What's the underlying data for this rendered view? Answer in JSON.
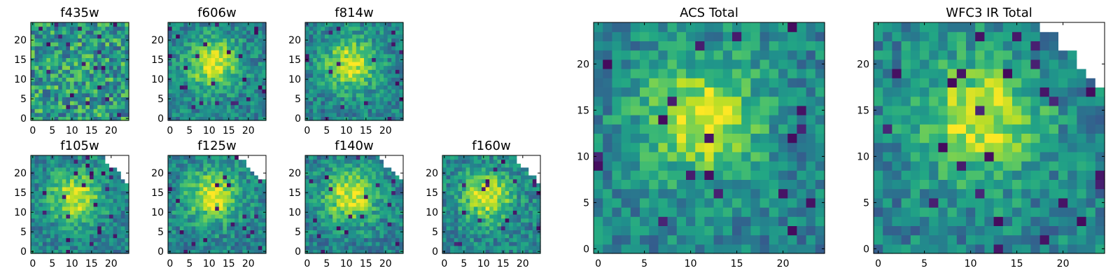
{
  "figure": {
    "background": "#ffffff",
    "colormap": "viridis"
  },
  "chart_data": [
    {
      "type": "heatmap",
      "title": "f435w",
      "xticks": [
        0,
        5,
        10,
        15,
        20
      ],
      "yticks": [
        0,
        5,
        10,
        15,
        20
      ],
      "grid_size": 25,
      "masked_upper_right": false,
      "bright_center": false
    },
    {
      "type": "heatmap",
      "title": "f606w",
      "xticks": [
        0,
        5,
        10,
        15,
        20
      ],
      "yticks": [
        0,
        5,
        10,
        15,
        20
      ],
      "grid_size": 25,
      "masked_upper_right": false,
      "bright_center": true
    },
    {
      "type": "heatmap",
      "title": "f814w",
      "xticks": [
        0,
        5,
        10,
        15,
        20
      ],
      "yticks": [
        0,
        5,
        10,
        15,
        20
      ],
      "grid_size": 25,
      "masked_upper_right": false,
      "bright_center": true
    },
    {
      "type": "heatmap",
      "title": "f105w",
      "xticks": [
        0,
        5,
        10,
        15,
        20
      ],
      "yticks": [
        0,
        5,
        10,
        15,
        20
      ],
      "grid_size": 25,
      "masked_upper_right": true,
      "bright_center": true
    },
    {
      "type": "heatmap",
      "title": "f125w",
      "xticks": [
        0,
        5,
        10,
        15,
        20
      ],
      "yticks": [
        0,
        5,
        10,
        15,
        20
      ],
      "grid_size": 25,
      "masked_upper_right": true,
      "bright_center": true
    },
    {
      "type": "heatmap",
      "title": "f140w",
      "xticks": [
        0,
        5,
        10,
        15,
        20
      ],
      "yticks": [
        0,
        5,
        10,
        15,
        20
      ],
      "grid_size": 25,
      "masked_upper_right": true,
      "bright_center": true
    },
    {
      "type": "heatmap",
      "title": "f160w",
      "xticks": [
        0,
        5,
        10,
        15,
        20
      ],
      "yticks": [
        0,
        5,
        10,
        15,
        20
      ],
      "grid_size": 25,
      "masked_upper_right": true,
      "bright_center": true
    },
    {
      "type": "heatmap",
      "title": "ACS Total",
      "xticks": [
        0,
        5,
        10,
        15,
        20
      ],
      "yticks": [
        0,
        5,
        10,
        15,
        20
      ],
      "grid_size": 25,
      "masked_upper_right": false,
      "bright_center": true
    },
    {
      "type": "heatmap",
      "title": "WFC3 IR Total",
      "xticks": [
        0,
        5,
        10,
        15,
        20
      ],
      "yticks": [
        0,
        5,
        10,
        15,
        20
      ],
      "grid_size": 25,
      "masked_upper_right": true,
      "bright_center": true
    }
  ]
}
